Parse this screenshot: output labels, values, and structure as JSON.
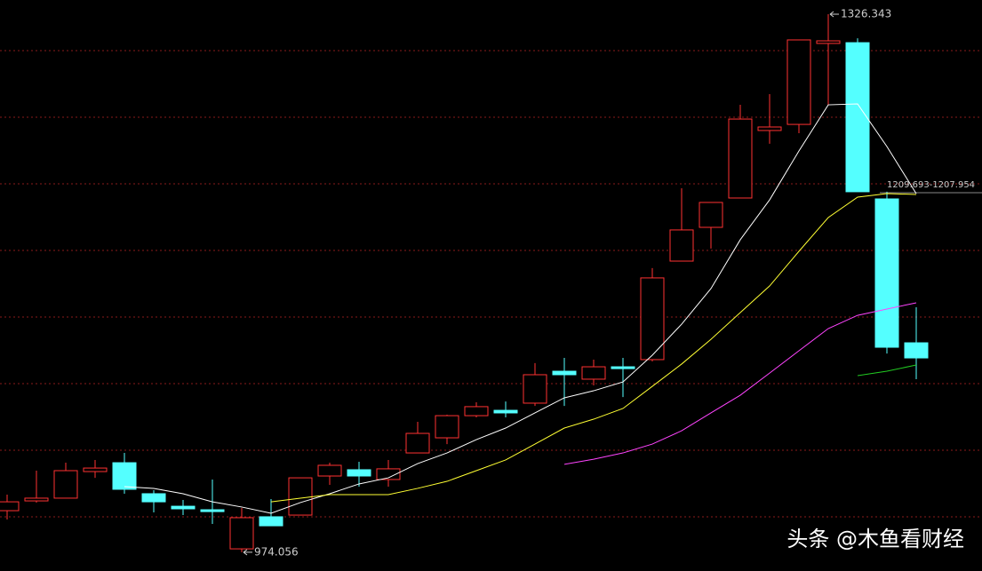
{
  "chart_data": {
    "type": "candlestick",
    "categories": [
      null,
      null,
      null,
      null,
      null,
      null,
      null,
      null,
      null,
      null,
      null,
      null,
      null,
      null,
      null,
      null,
      null,
      null,
      null,
      null,
      null,
      null,
      null,
      null,
      null,
      null,
      null,
      null,
      null,
      null,
      null,
      null
    ],
    "ohlc": {
      "open": [
        1001.3,
        1007.7,
        1009.5,
        1026.9,
        1032.7,
        1012.4,
        1004.2,
        1001.9,
        976.3,
        997.3,
        998.4,
        1024.0,
        1028.1,
        1021.7,
        1039.1,
        1049.0,
        1063.5,
        1067.0,
        1071.7,
        1092.6,
        1087.4,
        1095.5,
        1100.2,
        1164.7,
        1186.8,
        1206.0,
        1250.2,
        1254.2,
        1307.2,
        1307.7,
        1205.4,
        1111.2
      ],
      "high": [
        1011.8,
        1027.5,
        1032.7,
        1034.5,
        1039.1,
        1014.7,
        1008.3,
        1021.7,
        1003.1,
        1008.9,
        1022.8,
        1032.7,
        1033.3,
        1034.5,
        1059.5,
        1064.1,
        1072.3,
        1072.8,
        1097.9,
        1101.3,
        1100.2,
        1101.3,
        1160.1,
        1212.4,
        1203.1,
        1267.0,
        1274.0,
        1309.5,
        1326.343,
        1310.6,
        1210.1,
        1134.5
      ],
      "low": [
        995.5,
        1006.6,
        1009.5,
        1022.8,
        1012.4,
        1000.2,
        998.4,
        992.6,
        974.056,
        991.4,
        998.4,
        1018.2,
        1017.0,
        1017.0,
        1039.1,
        1044.9,
        1062.4,
        1062.4,
        1069.9,
        1069.9,
        1083.3,
        1075.7,
        1099.0,
        1164.7,
        1172.9,
        1206.0,
        1241.5,
        1248.4,
        1267.0,
        1210.1,
        1104.2,
        1087.4
      ],
      "close": [
        1007.1,
        1009.5,
        1027.5,
        1029.2,
        1015.3,
        1007.1,
        1002.5,
        1000.7,
        996.7,
        991.4,
        1022.8,
        1031.0,
        1024.0,
        1028.7,
        1051.9,
        1063.5,
        1069.4,
        1065.3,
        1090.3,
        1090.3,
        1095.5,
        1094.3,
        1153.7,
        1185.1,
        1203.1,
        1257.7,
        1252.5,
        1309.5,
        1308.9,
        1210.1,
        1108.3,
        1101.3
      ]
    },
    "up_color": "#ff3232",
    "down_color": "#54ffff",
    "lines": [
      {
        "color": "#ffffff",
        "values": [
          null,
          null,
          null,
          null,
          1017.0,
          1015.9,
          1012.4,
          1007.1,
          1003.7,
          999.6,
          1006.6,
          1012.4,
          1018.8,
          1022.8,
          1032.1,
          1039.1,
          1047.8,
          1055.4,
          1065.3,
          1075.2,
          1079.8,
          1085.6,
          1103.1,
          1123.4,
          1146.7,
          1178.7,
          1204.8,
          1236.8,
          1267.0,
          1267.6,
          1239.7,
          1208.9
        ]
      },
      {
        "color": "#ffff33",
        "values": [
          null,
          null,
          null,
          null,
          null,
          null,
          null,
          null,
          null,
          1007.1,
          1009.5,
          1011.8,
          1011.8,
          1011.8,
          1015.9,
          1020.5,
          1027.5,
          1034.5,
          1044.9,
          1055.4,
          1061.2,
          1068.2,
          1082.7,
          1097.3,
          1113.5,
          1131.0,
          1148.4,
          1171.1,
          1193.2,
          1206.6,
          1208.9,
          1208.3
        ]
      },
      {
        "color": "#ff44ff",
        "values": [
          null,
          null,
          null,
          null,
          null,
          null,
          null,
          null,
          null,
          null,
          null,
          null,
          null,
          null,
          null,
          null,
          null,
          null,
          null,
          1031.6,
          1035.0,
          1039.1,
          1044.9,
          1053.6,
          1065.3,
          1076.9,
          1091.4,
          1106.0,
          1120.5,
          1129.2,
          1133.3,
          1137.4
        ]
      },
      {
        "color": "#22cc22",
        "values": [
          null,
          null,
          null,
          null,
          null,
          null,
          null,
          null,
          null,
          null,
          null,
          null,
          null,
          null,
          null,
          null,
          null,
          null,
          null,
          null,
          null,
          null,
          null,
          null,
          null,
          null,
          null,
          null,
          null,
          1089.7,
          1092.6,
          1096.7
        ]
      }
    ],
    "ylim": [
      961.8,
      1335.64
    ],
    "max_label": "1326.343",
    "min_label": "974.056",
    "price_line_label": "1209.693-1207.954",
    "watermark": "头条 @木鱼看财经"
  }
}
